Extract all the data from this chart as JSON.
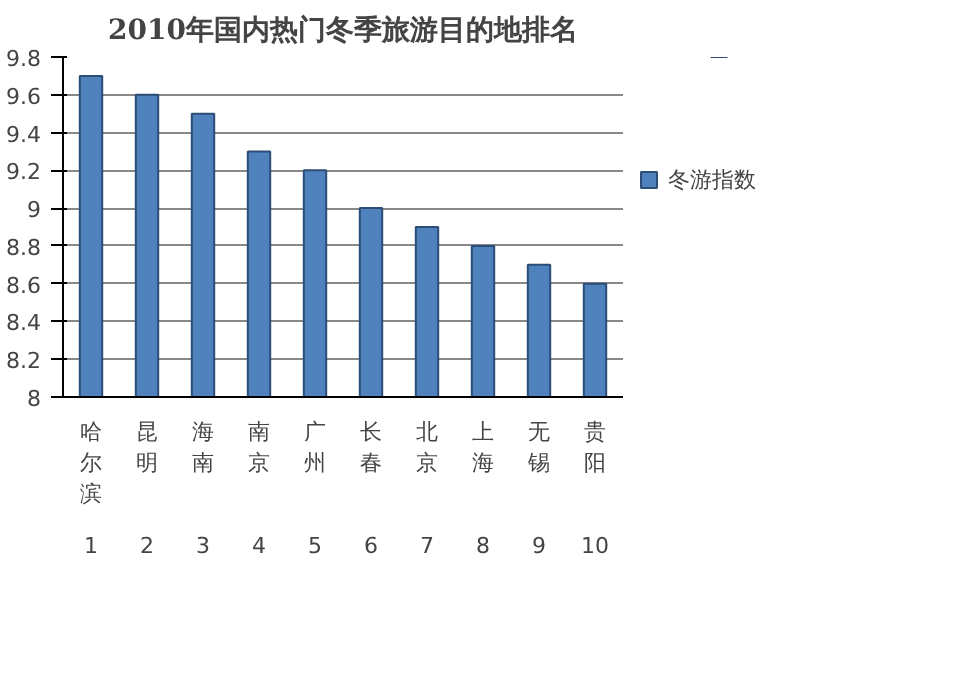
{
  "chart_data": {
    "type": "bar",
    "title": "2010年国内热门冬季旅游目的地排名",
    "categories": [
      "哈尔滨",
      "昆明",
      "海南",
      "南京",
      "广州",
      "长春",
      "北京",
      "上海",
      "无锡",
      "贵阳"
    ],
    "series": [
      {
        "name": "冬游指数",
        "color": "#4f81bd",
        "values": [
          9.7,
          9.6,
          9.5,
          9.3,
          9.2,
          9.0,
          8.9,
          8.8,
          8.7,
          8.6
        ]
      }
    ],
    "annotations": [
      "1",
      "2",
      "3",
      "4",
      "5",
      "6",
      "7",
      "8",
      "9",
      "10"
    ],
    "ylim": [
      8,
      9.8
    ],
    "yticks": [
      8,
      8.2,
      8.4,
      8.6,
      8.8,
      9,
      9.2,
      9.4,
      9.6,
      9.8
    ],
    "grid": "y",
    "legend": "right"
  }
}
